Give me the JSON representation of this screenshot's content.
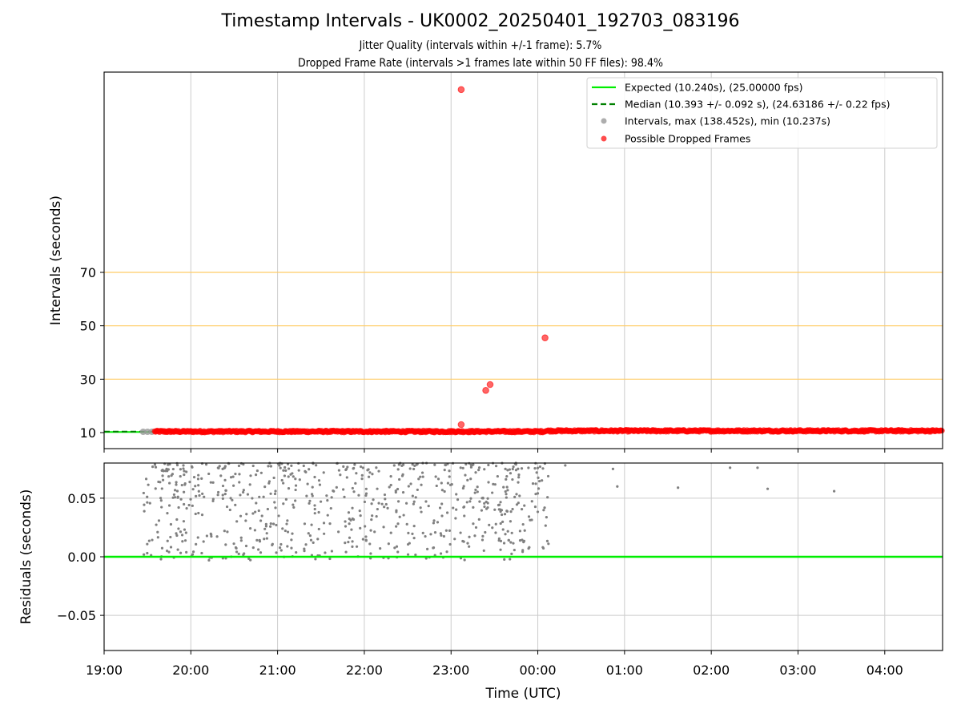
{
  "figure": {
    "title": "Timestamp Intervals - UK0002_20250401_192703_083196",
    "subtitle_1": "Jitter Quality (intervals within +/-1 frame): 5.7%",
    "subtitle_2": "Dropped Frame Rate (intervals >1 frames late within 50 FF files): 98.4%"
  },
  "colors": {
    "expected": "#00ee00",
    "median": "#008000",
    "intervals": "#999999",
    "dropped": "#ff0000",
    "threshold": "#ffcc66",
    "residual_points": "#808080",
    "grid": "#cccccc"
  },
  "chart_data": [
    {
      "type": "scatter",
      "ylabel": "Intervals (seconds)",
      "xlim": [
        "19:00",
        "04:40"
      ],
      "ylim": [
        4,
        145
      ],
      "y_ticks": [
        10,
        30,
        50,
        70
      ],
      "x_ticks": [
        "19:00",
        "20:00",
        "21:00",
        "22:00",
        "23:00",
        "00:00",
        "01:00",
        "02:00",
        "03:00",
        "04:00"
      ],
      "grid": "x-only",
      "threshold_lines": [
        30,
        50,
        70
      ],
      "legend_position": "top-right",
      "expected_interval": 10.24,
      "median_interval": 10.393,
      "series": [
        {
          "name": "Expected (10.240s), (25.00000 fps)",
          "kind": "line",
          "y": 10.24
        },
        {
          "name": "Median (10.393 +/- 0.092 s), (24.63186 +/- 0.22 fps)",
          "kind": "dashed-line",
          "y": 10.393
        },
        {
          "name": "Intervals, max (138.452s), min (10.237s)",
          "kind": "points",
          "x": [
            "19:27",
            "19:30",
            "19:33"
          ],
          "y": [
            10.3,
            10.3,
            10.3
          ]
        },
        {
          "name": "Possible Dropped Frames",
          "kind": "points",
          "band": {
            "x_range": [
              "19:35",
              "04:40"
            ],
            "y_approx": 10.4
          },
          "x": [
            "23:07",
            "23:07",
            "23:24",
            "23:27",
            "00:05"
          ],
          "y": [
            138.452,
            13.0,
            25.8,
            28.0,
            45.5
          ]
        }
      ]
    },
    {
      "type": "scatter",
      "xlabel": "Time (UTC)",
      "ylabel": "Residuals (seconds)",
      "xlim": [
        "19:00",
        "04:40"
      ],
      "ylim": [
        -0.08,
        0.08
      ],
      "y_ticks": [
        -0.05,
        0.0,
        0.05
      ],
      "y_tick_labels": [
        "−0.05",
        "0.00",
        "0.05"
      ],
      "x_ticks": [
        "19:00",
        "20:00",
        "21:00",
        "22:00",
        "23:00",
        "00:00",
        "01:00",
        "02:00",
        "03:00",
        "04:00"
      ],
      "grid": "both",
      "series": [
        {
          "name": "Zero line",
          "kind": "line",
          "y": 0.0
        },
        {
          "name": "Residuals",
          "kind": "points",
          "dense_range": {
            "x": [
              "19:27",
              "00:08"
            ],
            "y": [
              -0.003,
              0.08
            ]
          },
          "x": [
            "00:19",
            "00:52",
            "00:55",
            "01:37",
            "02:13",
            "02:32",
            "02:39",
            "03:25"
          ],
          "y": [
            0.078,
            0.075,
            0.06,
            0.059,
            0.076,
            0.076,
            0.058,
            0.056
          ]
        }
      ]
    }
  ]
}
